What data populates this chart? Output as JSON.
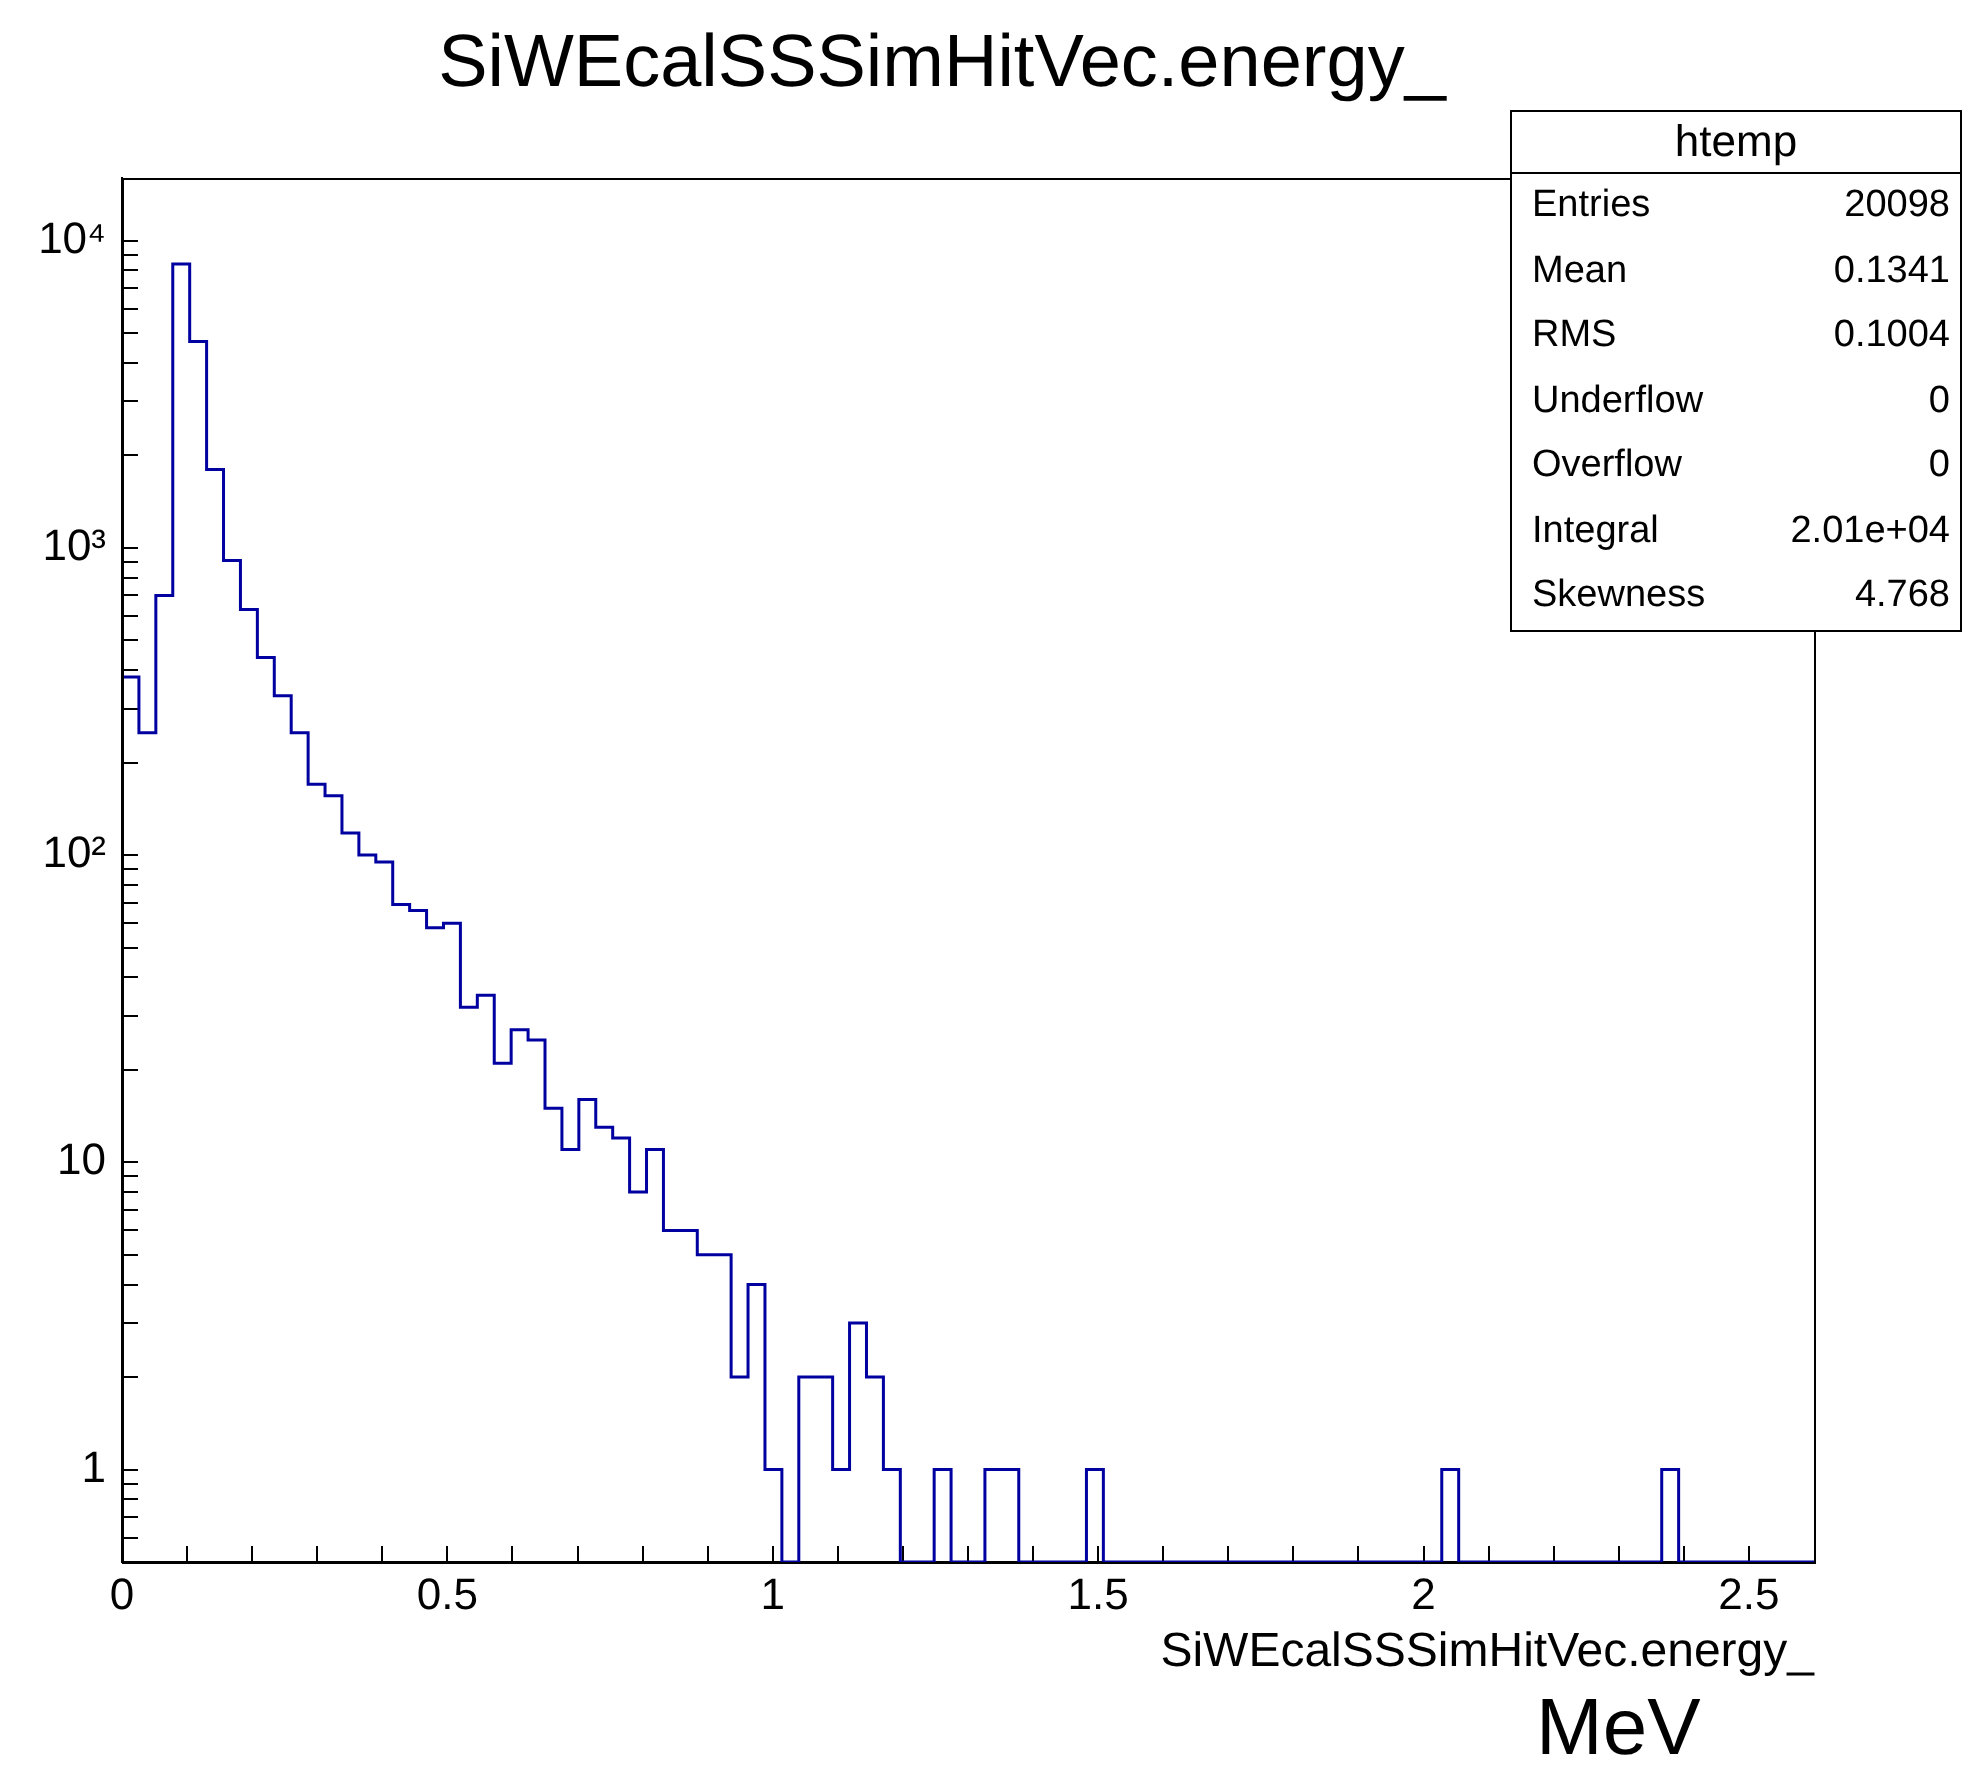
{
  "chart_data": {
    "type": "histogram",
    "title": "SiWEcalSSSimHitVec.energy_",
    "xlabel": "SiWEcalSSSimHitVec.energy_",
    "bins": [
      0,
      0.026,
      0.052,
      0.078,
      0.104,
      0.13,
      0.156,
      0.182,
      0.208,
      0.234,
      0.26,
      0.286,
      0.312,
      0.338,
      0.364,
      0.39,
      0.416,
      0.442,
      0.468,
      0.494,
      0.52,
      0.546,
      0.572,
      0.598,
      0.624,
      0.65,
      0.676,
      0.702,
      0.728,
      0.754,
      0.78,
      0.806,
      0.832,
      0.858,
      0.884,
      0.91,
      0.936,
      0.962,
      0.988,
      1.014,
      1.04,
      1.066,
      1.092,
      1.118,
      1.144,
      1.17,
      1.196,
      1.222,
      1.248,
      1.274,
      1.3,
      1.326,
      1.352,
      1.378,
      1.404,
      1.43,
      1.456,
      1.482,
      1.508,
      1.534,
      1.56,
      1.586,
      1.612,
      1.638,
      1.664,
      1.69,
      1.716,
      1.742,
      1.768,
      1.794,
      1.82,
      1.846,
      1.872,
      1.898,
      1.924,
      1.95,
      1.976,
      2.002,
      2.028,
      2.054,
      2.08,
      2.106,
      2.132,
      2.158,
      2.184,
      2.21,
      2.236,
      2.262,
      2.288,
      2.314,
      2.34,
      2.366,
      2.392,
      2.418,
      2.444,
      2.47,
      2.496,
      2.522,
      2.548,
      2.574,
      2.6
    ],
    "values": [
      380,
      250,
      700,
      8400,
      4700,
      1800,
      910,
      630,
      440,
      330,
      250,
      170,
      156,
      118,
      100,
      95,
      69,
      66,
      58,
      60,
      32,
      35,
      21,
      27,
      25,
      15,
      11,
      16,
      13,
      12,
      8,
      11,
      6,
      6,
      5,
      5,
      2,
      4,
      1,
      null,
      2,
      2,
      1,
      3,
      2,
      1,
      null,
      null,
      1,
      null,
      null,
      1,
      1,
      null,
      null,
      null,
      null,
      1,
      null,
      null,
      null,
      null,
      null,
      null,
      null,
      null,
      null,
      null,
      null,
      null,
      null,
      null,
      null,
      null,
      null,
      null,
      null,
      null,
      1,
      null,
      null,
      null,
      null,
      null,
      null,
      null,
      null,
      null,
      null,
      null,
      null,
      1,
      null,
      null,
      null,
      null,
      null,
      null,
      null,
      null
    ],
    "color": "#0000a0",
    "log": "y",
    "grid": false,
    "legend": false,
    "xlim": [
      0,
      2.6
    ],
    "ylim": [
      0.5,
      16000
    ],
    "xticks": [
      0,
      {
        "value": 0.1,
        "label": null
      },
      {
        "value": 0.2,
        "label": null
      },
      {
        "value": 0.3,
        "label": null
      },
      {
        "value": 0.4,
        "label": null
      },
      0.5,
      {
        "value": 0.6,
        "label": null
      },
      {
        "value": 0.7,
        "label": null
      },
      {
        "value": 0.8,
        "label": null
      },
      {
        "value": 0.9,
        "label": null
      },
      1,
      {
        "value": 1.1,
        "label": null
      },
      {
        "value": 1.2,
        "label": null
      },
      {
        "value": 1.3,
        "label": null
      },
      {
        "value": 1.4,
        "label": null
      },
      1.5,
      {
        "value": 1.6,
        "label": null
      },
      {
        "value": 1.7,
        "label": null
      },
      {
        "value": 1.8,
        "label": null
      },
      {
        "value": 1.9,
        "label": null
      },
      2,
      {
        "value": 2.1,
        "label": null
      },
      {
        "value": 2.2,
        "label": null
      },
      {
        "value": 2.3,
        "label": null
      },
      {
        "value": 2.4,
        "label": null
      },
      2.5
    ],
    "yticks": [
      {
        "value": 0.6,
        "label": null
      },
      {
        "value": 0.7,
        "label": null
      },
      {
        "value": 0.8,
        "label": null
      },
      {
        "value": 0.9,
        "label": null
      },
      1,
      {
        "value": 2,
        "label": null
      },
      {
        "value": 3,
        "label": null
      },
      {
        "value": 4,
        "label": null
      },
      {
        "value": 5,
        "label": null
      },
      {
        "value": 6,
        "label": null
      },
      {
        "value": 7,
        "label": null
      },
      {
        "value": 8,
        "label": null
      },
      {
        "value": 9,
        "label": null
      },
      10,
      {
        "value": 20,
        "label": null
      },
      {
        "value": 30,
        "label": null
      },
      {
        "value": 40,
        "label": null
      },
      {
        "value": 50,
        "label": null
      },
      {
        "value": 60,
        "label": null
      },
      {
        "value": 70,
        "label": null
      },
      {
        "value": 80,
        "label": null
      },
      {
        "value": 90,
        "label": null
      },
      {
        "value": 100,
        "label": "10²"
      },
      {
        "value": 200,
        "label": null
      },
      {
        "value": 300,
        "label": null
      },
      {
        "value": 400,
        "label": null
      },
      {
        "value": 500,
        "label": null
      },
      {
        "value": 600,
        "label": null
      },
      {
        "value": 700,
        "label": null
      },
      {
        "value": 800,
        "label": null
      },
      {
        "value": 900,
        "label": null
      },
      {
        "value": 1000,
        "label": "10³"
      },
      {
        "value": 2000,
        "label": null
      },
      {
        "value": 3000,
        "label": null
      },
      {
        "value": 4000,
        "label": null
      },
      {
        "value": 5000,
        "label": null
      },
      {
        "value": 6000,
        "label": null
      },
      {
        "value": 7000,
        "label": null
      },
      {
        "value": 8000,
        "label": null
      },
      {
        "value": 9000,
        "label": null
      },
      {
        "value": 10000,
        "label": "10⁴"
      }
    ],
    "annotations": [
      "htemp",
      "Entries",
      "20098",
      "Mean",
      "0.1341",
      "RMS",
      "0.1004",
      "Underflow",
      "0",
      "Overflow",
      "0",
      "Integral",
      "2.01e+04",
      "Skewness",
      "4.768",
      "MeV"
    ]
  }
}
